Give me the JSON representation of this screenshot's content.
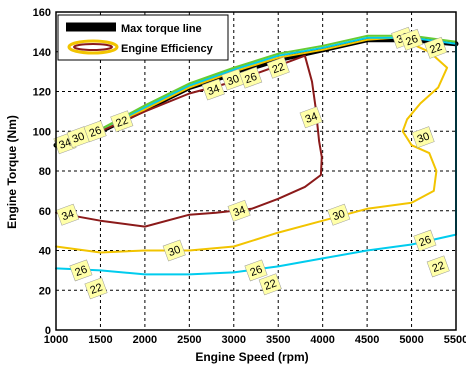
{
  "chart_data": {
    "type": "line",
    "xlabel": "Engine Speed (rpm)",
    "ylabel": "Engine Torque (Nm)",
    "xlim": [
      1000,
      5500
    ],
    "ylim": [
      0,
      160
    ],
    "xticks": [
      "1000",
      "1500",
      "2000",
      "2500",
      "3000",
      "3500",
      "4000",
      "4500",
      "5000",
      "5500"
    ],
    "yticks": [
      "0",
      "20",
      "40",
      "60",
      "80",
      "100",
      "120",
      "140",
      "160"
    ],
    "grid": true,
    "legend_position": "top-left",
    "legend": [
      {
        "label": "Max torque line",
        "color": "#000000"
      },
      {
        "label": "Engine Efficiency",
        "color": "#f2d000"
      }
    ],
    "series": [
      {
        "name": "Max torque line",
        "color": "#000000",
        "width": 5,
        "points": [
          [
            1000,
            93
          ],
          [
            1500,
            100
          ],
          [
            2000,
            111
          ],
          [
            2500,
            122
          ],
          [
            3000,
            129
          ],
          [
            3500,
            136
          ],
          [
            4000,
            141
          ],
          [
            4500,
            146
          ],
          [
            5000,
            146
          ],
          [
            5500,
            144
          ]
        ]
      },
      {
        "label": "34",
        "color": "#8b1a1a",
        "width": 2,
        "points": [
          [
            1000,
            93
          ],
          [
            1500,
            100
          ],
          [
            2000,
            110
          ],
          [
            2500,
            119
          ],
          [
            3000,
            125
          ],
          [
            3500,
            133
          ],
          [
            3800,
            138
          ],
          [
            3880,
            125
          ],
          [
            3920,
            112
          ],
          [
            3960,
            95
          ],
          [
            3990,
            87
          ],
          [
            3980,
            78
          ],
          [
            3800,
            72
          ],
          [
            3500,
            66
          ],
          [
            3200,
            61
          ],
          [
            2800,
            59
          ],
          [
            2500,
            58
          ],
          [
            2000,
            52
          ],
          [
            1500,
            55
          ],
          [
            1000,
            59
          ]
        ]
      },
      {
        "label": "30",
        "color": "#f2c400",
        "width": 2,
        "points": [
          [
            1000,
            93
          ],
          [
            1500,
            101
          ],
          [
            2000,
            111
          ],
          [
            2500,
            122
          ],
          [
            3000,
            130
          ],
          [
            3500,
            137
          ],
          [
            4000,
            141
          ],
          [
            4500,
            146
          ],
          [
            4800,
            147
          ],
          [
            5000,
            144
          ],
          [
            5200,
            140
          ],
          [
            5400,
            132
          ],
          [
            5300,
            122
          ],
          [
            5100,
            114
          ],
          [
            4950,
            106
          ],
          [
            4900,
            100
          ],
          [
            5000,
            93
          ],
          [
            5200,
            89
          ],
          [
            5280,
            80
          ],
          [
            5250,
            70
          ],
          [
            5000,
            64
          ],
          [
            4500,
            61
          ],
          [
            4000,
            55
          ],
          [
            3500,
            49
          ],
          [
            3000,
            42
          ],
          [
            2500,
            40
          ],
          [
            2000,
            40
          ],
          [
            1500,
            39
          ],
          [
            1000,
            42
          ]
        ]
      },
      {
        "label": "26",
        "color": "#00ccee",
        "width": 2,
        "points": [
          [
            1000,
            93
          ],
          [
            1500,
            101
          ],
          [
            2000,
            112
          ],
          [
            2500,
            123
          ],
          [
            3000,
            131
          ],
          [
            3500,
            138
          ],
          [
            4000,
            142
          ],
          [
            4500,
            147
          ],
          [
            5000,
            147
          ],
          [
            5500,
            144
          ],
          [
            5500,
            48
          ],
          [
            5000,
            43
          ],
          [
            4500,
            40
          ],
          [
            4000,
            36
          ],
          [
            3500,
            32
          ],
          [
            3000,
            29
          ],
          [
            2500,
            28
          ],
          [
            2000,
            28
          ],
          [
            1500,
            30
          ],
          [
            1000,
            31
          ]
        ]
      },
      {
        "label": "22",
        "color": "#66cc33",
        "width": 2,
        "points": [
          [
            1000,
            93
          ],
          [
            1500,
            101
          ],
          [
            2000,
            113
          ],
          [
            2500,
            124
          ],
          [
            3000,
            132
          ],
          [
            3500,
            139
          ],
          [
            4000,
            143
          ],
          [
            4500,
            148
          ],
          [
            5000,
            148
          ],
          [
            5500,
            145
          ]
        ]
      }
    ],
    "contour_labels": [
      {
        "text": "34",
        "x": 1100,
        "y": 94
      },
      {
        "text": "30",
        "x": 1250,
        "y": 97
      },
      {
        "text": "26",
        "x": 1440,
        "y": 100
      },
      {
        "text": "22",
        "x": 1740,
        "y": 105
      },
      {
        "text": "34",
        "x": 2770,
        "y": 121
      },
      {
        "text": "30",
        "x": 2990,
        "y": 126
      },
      {
        "text": "26",
        "x": 3190,
        "y": 127
      },
      {
        "text": "22",
        "x": 3500,
        "y": 132
      },
      {
        "text": "34",
        "x": 3870,
        "y": 107
      },
      {
        "text": "30",
        "x": 4900,
        "y": 147
      },
      {
        "text": "26",
        "x": 5000,
        "y": 146
      },
      {
        "text": "22",
        "x": 5270,
        "y": 142
      },
      {
        "text": "30",
        "x": 5130,
        "y": 97
      },
      {
        "text": "34",
        "x": 1130,
        "y": 58
      },
      {
        "text": "34",
        "x": 3060,
        "y": 60
      },
      {
        "text": "30",
        "x": 4180,
        "y": 58
      },
      {
        "text": "30",
        "x": 2330,
        "y": 40
      },
      {
        "text": "26",
        "x": 5150,
        "y": 45
      },
      {
        "text": "22",
        "x": 5300,
        "y": 32
      },
      {
        "text": "26",
        "x": 1280,
        "y": 30
      },
      {
        "text": "22",
        "x": 1450,
        "y": 21
      },
      {
        "text": "26",
        "x": 3250,
        "y": 30
      },
      {
        "text": "22",
        "x": 3410,
        "y": 23
      }
    ]
  }
}
